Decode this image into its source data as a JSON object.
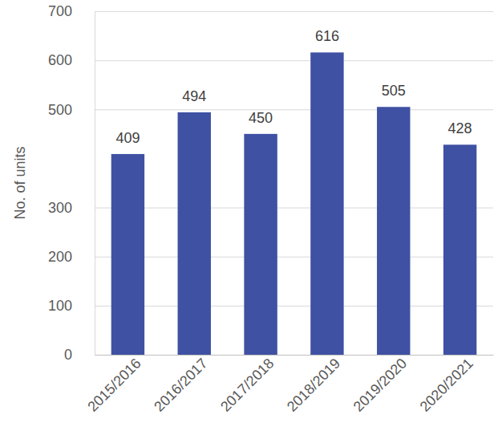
{
  "chart_data": {
    "type": "bar",
    "y_label": "No. of units",
    "categories": [
      "2015/2016",
      "2016/2017",
      "2017/2018",
      "2018/2019",
      "2019/2020",
      "2020/2021"
    ],
    "values": [
      409,
      494,
      450,
      616,
      505,
      428
    ],
    "color": "#3f51a3",
    "ylim": [
      0,
      700
    ],
    "yticks": [
      0,
      100,
      200,
      300,
      500,
      600,
      700
    ],
    "grid": true,
    "data_labels": true
  }
}
